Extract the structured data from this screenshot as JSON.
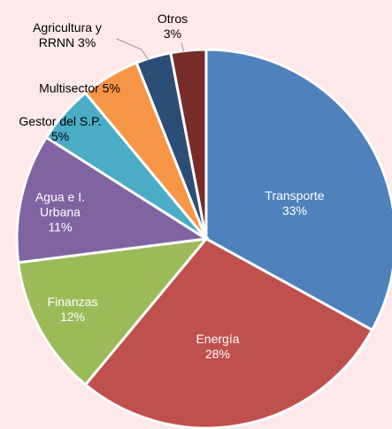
{
  "chart_data": {
    "type": "pie",
    "categories": [
      "Transporte",
      "Energía",
      "Finanzas",
      "Agua e I. Urbana",
      "Gestor del S.P.",
      "Multisector",
      "Agricultura y RRNN",
      "Otros"
    ],
    "values": [
      33,
      28,
      12,
      11,
      5,
      5,
      3,
      3
    ],
    "value_labels": [
      "33%",
      "28%",
      "12%",
      "11%",
      "5%",
      "5%",
      "3%",
      "3%"
    ],
    "colors": [
      "#4f81bd",
      "#c0504d",
      "#9bbb59",
      "#8064a2",
      "#4bacc6",
      "#f79646",
      "#2c4d75",
      "#772c2a"
    ]
  }
}
